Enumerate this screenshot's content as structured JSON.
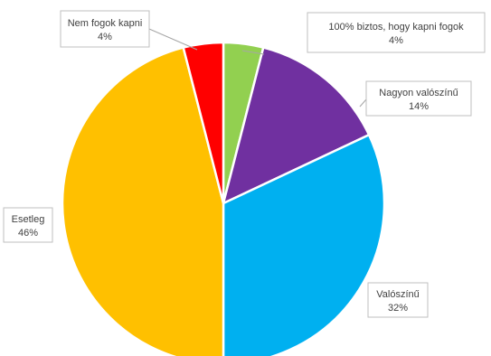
{
  "chart_data": {
    "type": "pie",
    "title": "",
    "series": [
      {
        "values": [
          4,
          14,
          32,
          46,
          4
        ],
        "categories": [
          "100% biztos, hogy kapni fogok",
          "Nagyon valószínű",
          "Valószínű",
          "Esetleg",
          "Nem fogok kapni"
        ],
        "data_labels": [
          "4%",
          "14%",
          "32%",
          "46%",
          "4%"
        ],
        "colors": [
          "#92d050",
          "#7030a0",
          "#00b0f0",
          "#ffc000",
          "#ff0000"
        ]
      }
    ],
    "legend": "none",
    "start_angle": "12 o'clock",
    "direction": "clockwise"
  }
}
